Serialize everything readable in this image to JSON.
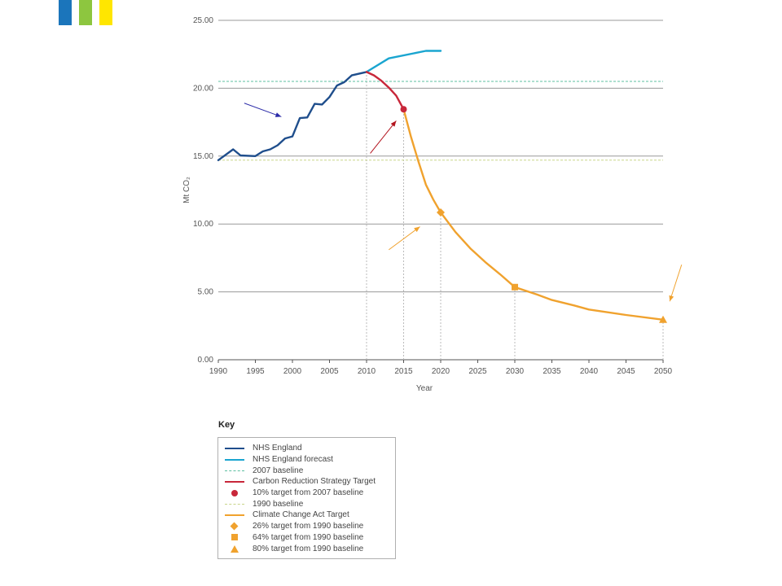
{
  "logo": {
    "colors": [
      "#1b75bb",
      "#8dc63f",
      "#ffe600"
    ]
  },
  "chart_data": {
    "type": "line",
    "xlabel": "Year",
    "ylabel": "Mt CO₂",
    "xlim": [
      1990,
      2050
    ],
    "ylim": [
      0,
      25
    ],
    "x_ticks": [
      "1990",
      "1995",
      "2000",
      "2005",
      "2010",
      "2015",
      "2020",
      "2025",
      "2030",
      "2035",
      "2040",
      "2045",
      "2050"
    ],
    "y_ticks": [
      "0.00",
      "5.00",
      "10.00",
      "15.00",
      "20.00",
      "25.00"
    ],
    "horizontal_grid": true,
    "vertical_guides_at": [
      2010,
      2015,
      2020,
      2030,
      2050
    ],
    "series": [
      {
        "key": "nhs",
        "color": "#1f4e8c",
        "points": [
          [
            1990,
            14.7
          ],
          [
            1992,
            15.5
          ],
          [
            1993,
            15.05
          ],
          [
            1995,
            15.0
          ],
          [
            1996,
            15.35
          ],
          [
            1997,
            15.5
          ],
          [
            1998,
            15.8
          ],
          [
            1999,
            16.3
          ],
          [
            2000,
            16.45
          ],
          [
            2001,
            17.8
          ],
          [
            2002,
            17.85
          ],
          [
            2003,
            18.85
          ],
          [
            2004,
            18.8
          ],
          [
            2005,
            19.35
          ],
          [
            2006,
            20.2
          ],
          [
            2007,
            20.45
          ],
          [
            2008,
            20.95
          ],
          [
            2010,
            21.2
          ]
        ]
      },
      {
        "key": "forecast",
        "color": "#1aa5d0",
        "points": [
          [
            2010,
            21.2
          ],
          [
            2013,
            22.2
          ],
          [
            2018,
            22.75
          ],
          [
            2020,
            22.75
          ]
        ]
      },
      {
        "key": "crs",
        "color": "#c8273a",
        "points": [
          [
            2010,
            21.2
          ],
          [
            2011,
            20.95
          ],
          [
            2012,
            20.55
          ],
          [
            2013,
            20.05
          ],
          [
            2014,
            19.45
          ],
          [
            2015,
            18.45
          ]
        ]
      },
      {
        "key": "cca",
        "color": "#f0a22e",
        "points": [
          [
            2015,
            18.45
          ],
          [
            2016,
            16.4
          ],
          [
            2017,
            14.6
          ],
          [
            2018,
            12.9
          ],
          [
            2019,
            11.8
          ],
          [
            2020,
            10.85
          ],
          [
            2022,
            9.4
          ],
          [
            2024,
            8.2
          ],
          [
            2026,
            7.2
          ],
          [
            2028,
            6.3
          ],
          [
            2030,
            5.35
          ],
          [
            2033,
            4.8
          ],
          [
            2035,
            4.4
          ],
          [
            2038,
            4.0
          ],
          [
            2040,
            3.7
          ],
          [
            2045,
            3.3
          ],
          [
            2050,
            2.95
          ]
        ]
      }
    ],
    "baselines": [
      {
        "key": "baseline2007",
        "y": 20.5,
        "color": "#5dbfa0"
      },
      {
        "key": "baseline1990",
        "y": 14.7,
        "color": "#c9d58a"
      }
    ],
    "markers": [
      {
        "shape": "circle",
        "x": 2015,
        "y": 18.45,
        "color": "#c8273a"
      },
      {
        "shape": "diamond",
        "x": 2020,
        "y": 10.85,
        "color": "#f0a22e"
      },
      {
        "shape": "square",
        "x": 2030,
        "y": 5.35,
        "color": "#f0a22e"
      },
      {
        "shape": "triangle",
        "x": 2050,
        "y": 2.95,
        "color": "#f0a22e"
      }
    ],
    "arrows": [
      {
        "color": "#2b2ba8",
        "from": [
          1993.5,
          18.9
        ],
        "to": [
          1998.5,
          17.9
        ]
      },
      {
        "color": "#b3141e",
        "from": [
          2010.5,
          15.2
        ],
        "to": [
          2014.0,
          17.6
        ]
      },
      {
        "color": "#f0a22e",
        "from": [
          2013.0,
          8.1
        ],
        "to": [
          2017.2,
          9.8
        ]
      },
      {
        "color": "#f0a22e",
        "from": [
          2052.5,
          7.0
        ],
        "to": [
          2050.9,
          4.3
        ]
      }
    ]
  },
  "key": {
    "title": "Key",
    "items": [
      {
        "symbol": "line",
        "color": "#1f4e8c",
        "label": "NHS England"
      },
      {
        "symbol": "line",
        "color": "#1aa5d0",
        "label": "NHS England forecast"
      },
      {
        "symbol": "dash",
        "color": "#5dbfa0",
        "label": "2007 baseline"
      },
      {
        "symbol": "line",
        "color": "#c8273a",
        "label": "Carbon Reduction Strategy Target"
      },
      {
        "symbol": "circle",
        "color": "#c8273a",
        "label": "10% target from 2007 baseline"
      },
      {
        "symbol": "dash",
        "color": "#c9d58a",
        "label": "1990 baseline"
      },
      {
        "symbol": "line",
        "color": "#f0a22e",
        "label": "Climate Change Act Target"
      },
      {
        "symbol": "diamond",
        "color": "#f0a22e",
        "label": "26% target from 1990 baseline"
      },
      {
        "symbol": "square",
        "color": "#f0a22e",
        "label": "64% target from 1990 baseline"
      },
      {
        "symbol": "triangle",
        "color": "#f0a22e",
        "label": "80% target from 1990 baseline"
      }
    ]
  }
}
